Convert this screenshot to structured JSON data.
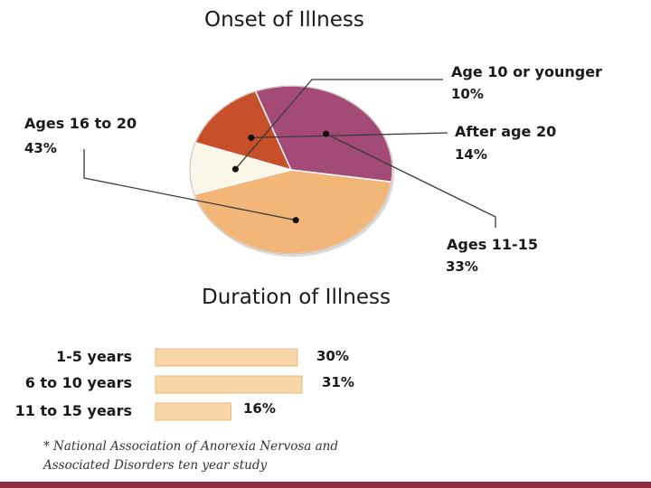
{
  "chart_data": [
    {
      "type": "pie",
      "title": "Onset of Illness",
      "slices": [
        {
          "label": "Age 10 or younger",
          "value": 10,
          "value_label": "10%",
          "color": "#fbf7e8"
        },
        {
          "label": "After age 20",
          "value": 14,
          "value_label": "14%",
          "color": "#c7502a"
        },
        {
          "label": "Ages 11-15",
          "value": 33,
          "value_label": "33%",
          "color": "#a34a77"
        },
        {
          "label": "Ages 16 to 20",
          "value": 43,
          "value_label": "43%",
          "color": "#f3b679"
        }
      ]
    },
    {
      "type": "bar",
      "orientation": "horizontal",
      "title": "Duration of Illness",
      "categories": [
        "1-5 years",
        "6 to 10 years",
        "11 to 15 years"
      ],
      "values": [
        30,
        31,
        16
      ],
      "value_labels": [
        "30%",
        "31%",
        "16%"
      ],
      "bar_color": "#f8d6a8",
      "bar_edge_color": "#e9b97c"
    }
  ],
  "footnote": {
    "line1": "* National Association of Anorexia Nervosa and",
    "line2": "Associated Disorders ten year study"
  },
  "colors": {
    "accent_bar": "#8d2b40"
  }
}
